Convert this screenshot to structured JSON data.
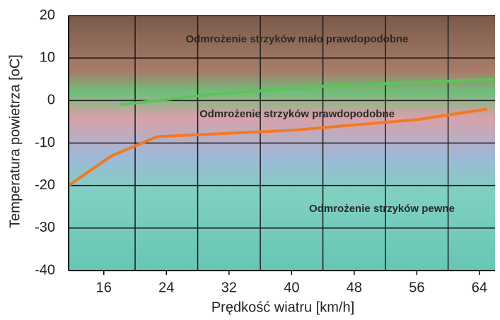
{
  "chart_data": {
    "type": "line",
    "x_label": "Prędkość wiatru [km/h]",
    "y_label": "Temperatura powietrza [oC]",
    "xlim": [
      11.5,
      66
    ],
    "xticks": [
      16,
      24,
      32,
      40,
      48,
      56,
      64
    ],
    "ylim": [
      -40,
      20
    ],
    "yticks": [
      -40,
      -30,
      -20,
      -10,
      0,
      10,
      20
    ],
    "grid": true,
    "series": [
      {
        "color": "#5cc35a",
        "x": [
          18,
          30,
          45,
          66
        ],
        "values": [
          -1,
          1.5,
          3.5,
          5
        ]
      },
      {
        "color": "#f07a22",
        "x": [
          11.5,
          17,
          22.8,
          40,
          56,
          65
        ],
        "values": [
          -20,
          -13,
          -8.5,
          -7,
          -4.5,
          -2
        ]
      }
    ],
    "annotations": [
      "Odmrożenie strzyków mało prawdopodobne",
      "Odmrożenie strzyków prawdopodobne",
      "Odmrożenie strzyków pewne"
    ]
  }
}
